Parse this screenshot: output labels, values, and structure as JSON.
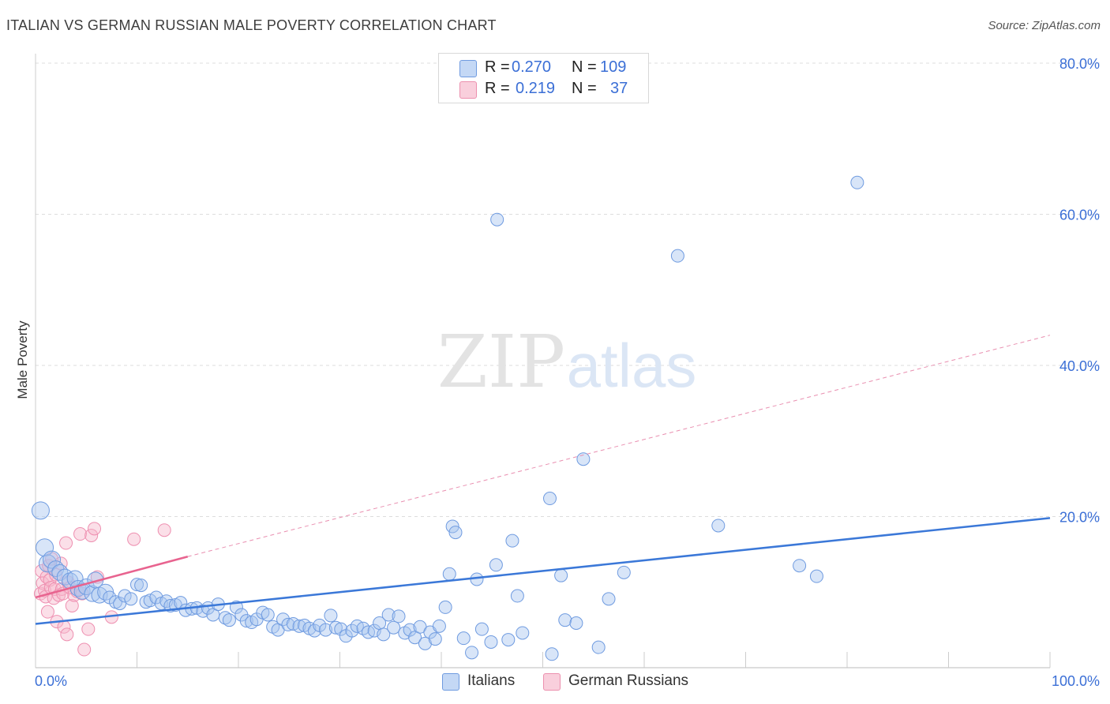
{
  "header": {
    "title": "ITALIAN VS GERMAN RUSSIAN MALE POVERTY CORRELATION CHART",
    "source": "Source: ZipAtlas.com"
  },
  "watermark": {
    "zip": "ZIP",
    "atlas": "atlas"
  },
  "legend_top": {
    "rows": [
      {
        "r_label": "R =",
        "r_value": "0.270",
        "n_label": "N =",
        "n_value": "109",
        "color": "#a9c6f0"
      },
      {
        "r_label": "R =",
        "r_value": "0.219",
        "n_label": "N =",
        "n_value": "37",
        "color": "#f6b8cb"
      }
    ]
  },
  "legend_bottom": {
    "items": [
      {
        "label": "Italians",
        "color": "#a9c6f0"
      },
      {
        "label": "German Russians",
        "color": "#f6b8cb"
      }
    ]
  },
  "chart_data": {
    "type": "scatter",
    "title": "ITALIAN VS GERMAN RUSSIAN MALE POVERTY CORRELATION CHART",
    "ylabel": "Male Poverty",
    "xlabel": "",
    "xlim": [
      0,
      100
    ],
    "ylim": [
      0,
      83
    ],
    "x_tick_labels": [
      "0.0%",
      "100.0%"
    ],
    "y_ticks": [
      20,
      40,
      60,
      80
    ],
    "y_tick_labels": [
      "20.0%",
      "40.0%",
      "60.0%",
      "80.0%"
    ],
    "grid": "horizontal dashed",
    "colors": {
      "italians": "#3b78d8",
      "german_russians": "#e8638f",
      "tick_label": "#3b6fd6"
    },
    "series": [
      {
        "name": "Italians",
        "trend": {
          "x": [
            0,
            100
          ],
          "y": [
            5.8,
            19.8
          ]
        },
        "points": [
          [
            0.5,
            20.8
          ],
          [
            0.9,
            15.9
          ],
          [
            1.2,
            13.8
          ],
          [
            1.6,
            14.3
          ],
          [
            2.0,
            13.1
          ],
          [
            2.4,
            12.6
          ],
          [
            2.9,
            12.0
          ],
          [
            3.4,
            11.5
          ],
          [
            3.9,
            11.8
          ],
          [
            4.2,
            10.5
          ],
          [
            4.6,
            10.1
          ],
          [
            5.0,
            10.7
          ],
          [
            5.6,
            9.8
          ],
          [
            5.9,
            11.6
          ],
          [
            6.3,
            9.6
          ],
          [
            6.9,
            10.0
          ],
          [
            7.3,
            9.3
          ],
          [
            7.9,
            8.7
          ],
          [
            8.3,
            8.5
          ],
          [
            8.8,
            9.5
          ],
          [
            9.4,
            9.1
          ],
          [
            10.0,
            11.0
          ],
          [
            10.4,
            10.9
          ],
          [
            10.9,
            8.7
          ],
          [
            11.3,
            8.9
          ],
          [
            11.9,
            9.3
          ],
          [
            12.4,
            8.5
          ],
          [
            12.9,
            8.8
          ],
          [
            13.3,
            8.2
          ],
          [
            13.8,
            8.3
          ],
          [
            14.3,
            8.6
          ],
          [
            14.8,
            7.6
          ],
          [
            15.4,
            7.8
          ],
          [
            15.9,
            7.9
          ],
          [
            16.5,
            7.5
          ],
          [
            17.0,
            7.9
          ],
          [
            17.5,
            7.0
          ],
          [
            18.0,
            8.4
          ],
          [
            18.7,
            6.6
          ],
          [
            19.1,
            6.3
          ],
          [
            19.8,
            8.0
          ],
          [
            20.3,
            7.0
          ],
          [
            20.8,
            6.2
          ],
          [
            21.3,
            6.0
          ],
          [
            21.8,
            6.4
          ],
          [
            22.4,
            7.3
          ],
          [
            22.9,
            7.0
          ],
          [
            23.4,
            5.4
          ],
          [
            23.9,
            5.0
          ],
          [
            24.4,
            6.4
          ],
          [
            24.9,
            5.7
          ],
          [
            25.4,
            5.8
          ],
          [
            26.0,
            5.5
          ],
          [
            26.5,
            5.6
          ],
          [
            27.0,
            5.2
          ],
          [
            27.5,
            4.9
          ],
          [
            28.0,
            5.6
          ],
          [
            28.6,
            5.0
          ],
          [
            29.1,
            6.9
          ],
          [
            29.6,
            5.3
          ],
          [
            30.1,
            5.1
          ],
          [
            30.6,
            4.2
          ],
          [
            31.2,
            4.9
          ],
          [
            31.7,
            5.5
          ],
          [
            32.3,
            5.2
          ],
          [
            32.8,
            4.7
          ],
          [
            33.4,
            4.9
          ],
          [
            33.9,
            5.9
          ],
          [
            34.3,
            4.4
          ],
          [
            34.8,
            7.0
          ],
          [
            35.3,
            5.3
          ],
          [
            35.8,
            6.8
          ],
          [
            36.4,
            4.6
          ],
          [
            36.9,
            5.0
          ],
          [
            37.4,
            4.0
          ],
          [
            37.9,
            5.4
          ],
          [
            38.4,
            3.2
          ],
          [
            38.9,
            4.7
          ],
          [
            39.4,
            3.8
          ],
          [
            39.8,
            5.5
          ],
          [
            40.4,
            8.0
          ],
          [
            40.8,
            12.4
          ],
          [
            41.1,
            18.7
          ],
          [
            41.4,
            17.9
          ],
          [
            42.2,
            3.9
          ],
          [
            43.0,
            2.0
          ],
          [
            43.5,
            11.7
          ],
          [
            44.0,
            5.1
          ],
          [
            44.9,
            3.4
          ],
          [
            45.4,
            13.6
          ],
          [
            46.6,
            3.7
          ],
          [
            47.0,
            16.8
          ],
          [
            47.5,
            9.5
          ],
          [
            48.0,
            4.6
          ],
          [
            50.7,
            22.4
          ],
          [
            50.9,
            1.8
          ],
          [
            51.8,
            12.2
          ],
          [
            52.2,
            6.3
          ],
          [
            53.3,
            5.9
          ],
          [
            54.0,
            27.6
          ],
          [
            55.5,
            2.7
          ],
          [
            56.5,
            9.1
          ],
          [
            58.0,
            12.6
          ],
          [
            63.3,
            54.5
          ],
          [
            67.3,
            18.8
          ],
          [
            45.5,
            59.3
          ],
          [
            75.3,
            13.5
          ],
          [
            77.0,
            12.1
          ],
          [
            81.0,
            64.2
          ]
        ]
      },
      {
        "name": "German Russians",
        "trend": {
          "x": [
            0,
            15
          ],
          "y": [
            9.3,
            14.7
          ]
        },
        "trend_extension": {
          "x": [
            15,
            100
          ],
          "y": [
            14.7,
            44.0
          ]
        },
        "points": [
          [
            0.5,
            9.8
          ],
          [
            0.6,
            12.8
          ],
          [
            0.7,
            11.2
          ],
          [
            0.9,
            10.2
          ],
          [
            1.0,
            9.4
          ],
          [
            1.1,
            12.0
          ],
          [
            1.2,
            7.4
          ],
          [
            1.3,
            13.5
          ],
          [
            1.4,
            11.6
          ],
          [
            1.5,
            10.6
          ],
          [
            1.6,
            14.4
          ],
          [
            1.8,
            9.2
          ],
          [
            1.9,
            10.4
          ],
          [
            2.0,
            12.3
          ],
          [
            2.1,
            6.1
          ],
          [
            2.3,
            9.6
          ],
          [
            2.5,
            13.8
          ],
          [
            2.6,
            10.4
          ],
          [
            2.7,
            9.8
          ],
          [
            2.8,
            5.4
          ],
          [
            3.0,
            16.5
          ],
          [
            3.1,
            4.4
          ],
          [
            3.2,
            11.3
          ],
          [
            3.4,
            10.6
          ],
          [
            3.6,
            8.2
          ],
          [
            3.8,
            9.6
          ],
          [
            4.1,
            10.1
          ],
          [
            4.4,
            17.7
          ],
          [
            4.6,
            9.8
          ],
          [
            4.8,
            2.4
          ],
          [
            5.2,
            5.1
          ],
          [
            5.5,
            17.5
          ],
          [
            5.8,
            18.4
          ],
          [
            6.1,
            12.0
          ],
          [
            7.5,
            6.7
          ],
          [
            9.7,
            17.0
          ],
          [
            12.7,
            18.2
          ]
        ]
      }
    ]
  }
}
